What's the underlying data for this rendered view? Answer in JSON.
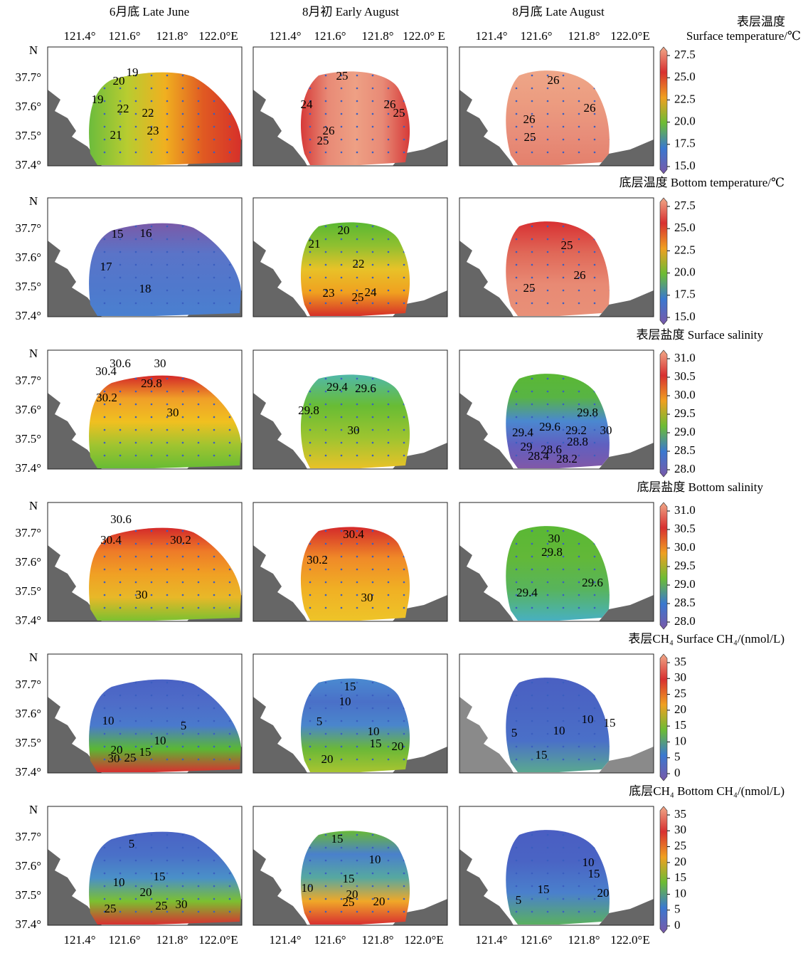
{
  "columns": [
    "6月底 Late June",
    "8月初 Early August",
    "8月底 Late August"
  ],
  "top_lon_ticks": [
    [
      "121.4°",
      "121.6°",
      "121.8°",
      "122.0°E"
    ],
    [
      "121.4°",
      "121.6°",
      "121.8°",
      "122.0° E"
    ],
    [
      "121.4°",
      "121.6°",
      "121.8°",
      "122.0°E"
    ]
  ],
  "bottom_lon_ticks": [
    "121.4°",
    "121.6°",
    "121.8°",
    "122.0°E"
  ],
  "lat_ticks": [
    "N",
    "37.7°",
    "37.6°",
    "37.5°",
    "37.4°"
  ],
  "rows": [
    {
      "title": [
        "表层温度",
        "Surface temperature/℃"
      ],
      "colorbar": [
        "27.5",
        "25.0",
        "22.5",
        "20.0",
        "17.5",
        "15.0"
      ],
      "panels": [
        [
          "19",
          "20",
          "19",
          "22",
          "22",
          "21",
          "23"
        ],
        [
          "25",
          "24",
          "26",
          "25",
          "26",
          "25"
        ],
        [
          "26",
          "26",
          "26",
          "25"
        ]
      ]
    },
    {
      "title": "底层温度 Bottom temperature/℃",
      "colorbar": [
        "27.5",
        "25.0",
        "22.5",
        "20.0",
        "17.5",
        "15.0"
      ],
      "panels": [
        [
          "15",
          "16",
          "17",
          "18"
        ],
        [
          "20",
          "21",
          "22",
          "23",
          "24",
          "25"
        ],
        [
          "25",
          "26",
          "25"
        ]
      ]
    },
    {
      "title": "表层盐度 Surface salinity",
      "colorbar": [
        "31.0",
        "30.5",
        "30.0",
        "29.5",
        "29.0",
        "28.5",
        "28.0"
      ],
      "panels": [
        [
          "30.6",
          "30",
          "30.4",
          "29.8",
          "30.2",
          "30"
        ],
        [
          "29.4",
          "29.6",
          "29.8",
          "30"
        ],
        [
          "29.8",
          "30",
          "29.4",
          "29.6",
          "29.2",
          "28.8",
          "29",
          "28.6",
          "28.4",
          "28.2"
        ]
      ]
    },
    {
      "title": "底层盐度 Bottom salinity",
      "colorbar": [
        "31.0",
        "30.5",
        "30.0",
        "29.5",
        "29.0",
        "28.5",
        "28.0"
      ],
      "panels": [
        [
          "30.6",
          "30.4",
          "30.2",
          "30"
        ],
        [
          "30.4",
          "30.2",
          "30"
        ],
        [
          "30",
          "29.8",
          "29.6",
          "29.4"
        ]
      ]
    },
    {
      "title": "表层CH₄ Surface CH₄/(nmol/L)",
      "colorbar": [
        "35",
        "30",
        "25",
        "20",
        "15",
        "10",
        "5",
        "0"
      ],
      "panels": [
        [
          "10",
          "5",
          "10",
          "20",
          "15",
          "30",
          "25"
        ],
        [
          "15",
          "10",
          "5",
          "10",
          "15",
          "20",
          "20"
        ],
        [
          "10",
          "15",
          "5",
          "10",
          "15"
        ]
      ]
    },
    {
      "title": "底层CH₄ Bottom CH₄/(nmol/L)",
      "colorbar": [
        "35",
        "30",
        "25",
        "20",
        "15",
        "10",
        "5",
        "0"
      ],
      "panels": [
        [
          "5",
          "10",
          "15",
          "20",
          "25",
          "25",
          "30"
        ],
        [
          "15",
          "10",
          "15",
          "10",
          "20",
          "25",
          "20"
        ],
        [
          "10",
          "15",
          "15",
          "20",
          "5"
        ]
      ]
    }
  ]
}
